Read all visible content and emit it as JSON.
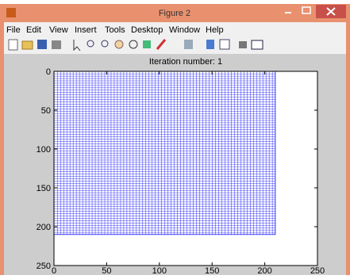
{
  "window": {
    "title": "Figure 2",
    "menu": [
      "File",
      "Edit",
      "View",
      "Insert",
      "Tools",
      "Desktop",
      "Window",
      "Help"
    ]
  },
  "chart_data": {
    "type": "mesh",
    "title": "Iteration number: 1",
    "xlim": [
      0,
      250
    ],
    "ylim": [
      0,
      250
    ],
    "y_reversed": true,
    "xticks": [
      0,
      50,
      100,
      150,
      200,
      250
    ],
    "yticks": [
      0,
      50,
      100,
      150,
      200,
      250
    ],
    "mesh": {
      "x": [
        0,
        210
      ],
      "y": [
        0,
        210
      ],
      "step": 3,
      "color": "#0000ff"
    }
  }
}
